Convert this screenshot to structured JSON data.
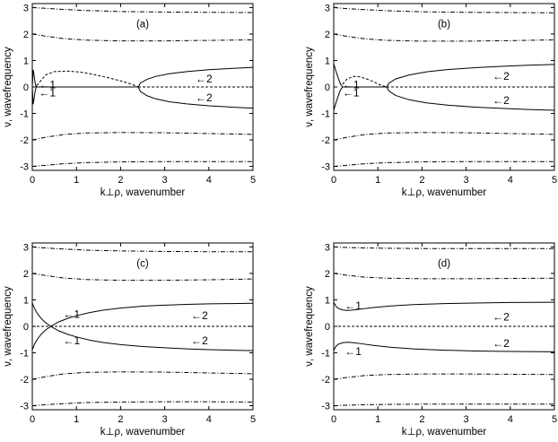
{
  "chart_data": [
    {
      "type": "line",
      "panel_label": "(a)",
      "xlabel": "k⊥ρ, wavenumber",
      "ylabel": "ν, wavefrequency",
      "xlim": [
        0,
        5
      ],
      "ylim": [
        -3.15,
        3.15
      ],
      "xticks": [
        0,
        1,
        2,
        3,
        4,
        5
      ],
      "yticks": [
        -3,
        -2,
        -1,
        0,
        1,
        2,
        3
      ],
      "grid": false,
      "annotations": [
        {
          "text": "←1",
          "x": 0.15,
          "y": 0.08
        },
        {
          "text": "←1",
          "x": 0.15,
          "y": -0.22
        },
        {
          "text": "←2",
          "x": 3.7,
          "y": 0.3
        },
        {
          "text": "←2",
          "x": 3.7,
          "y": -0.4
        }
      ],
      "series": [
        {
          "style": "solid",
          "x": [
            0,
            0.02,
            0.04,
            0.06,
            0.08,
            0.1
          ],
          "y": [
            0,
            0.65,
            0.45,
            0.2,
            0.05,
            0
          ]
        },
        {
          "style": "solid",
          "x": [
            0,
            0.02,
            0.04,
            0.06,
            0.08,
            0.1
          ],
          "y": [
            0,
            -0.65,
            -0.45,
            -0.2,
            -0.05,
            0
          ]
        },
        {
          "style": "solid",
          "x": [
            0.1,
            2.4
          ],
          "y": [
            0,
            0
          ]
        },
        {
          "style": "solid",
          "x": [
            2.4,
            2.45,
            2.6,
            2.8,
            3.1,
            3.5,
            4.0,
            4.5,
            5.0
          ],
          "y": [
            0,
            0.15,
            0.29,
            0.4,
            0.5,
            0.58,
            0.65,
            0.7,
            0.74
          ]
        },
        {
          "style": "solid",
          "x": [
            2.4,
            2.45,
            2.6,
            2.8,
            3.1,
            3.5,
            4.0,
            4.5,
            5.0
          ],
          "y": [
            0,
            -0.17,
            -0.33,
            -0.45,
            -0.56,
            -0.64,
            -0.71,
            -0.76,
            -0.8
          ]
        },
        {
          "style": "dashed",
          "x": [
            0.1,
            0.3,
            0.5,
            0.8,
            1.1,
            1.4,
            1.7,
            2.0,
            2.2,
            2.35,
            2.4
          ],
          "y": [
            0.05,
            0.45,
            0.58,
            0.6,
            0.56,
            0.47,
            0.36,
            0.23,
            0.13,
            0.04,
            0
          ]
        },
        {
          "style": "dashed",
          "x": [
            2.4,
            5.0
          ],
          "y": [
            0,
            0
          ]
        },
        {
          "style": "dashdot",
          "x": [
            0,
            0.3,
            0.7,
            1.2,
            2,
            3,
            4,
            5
          ],
          "y": [
            3.0,
            2.97,
            2.93,
            2.89,
            2.85,
            2.83,
            2.82,
            2.81
          ]
        },
        {
          "style": "dashdot",
          "x": [
            0,
            0.3,
            0.7,
            1.2,
            2,
            3,
            4,
            5
          ],
          "y": [
            2.0,
            1.92,
            1.83,
            1.77,
            1.74,
            1.74,
            1.76,
            1.78
          ]
        },
        {
          "style": "dashdot",
          "x": [
            0,
            0.3,
            0.7,
            1.2,
            2,
            3,
            4,
            5
          ],
          "y": [
            -2.0,
            -1.9,
            -1.8,
            -1.74,
            -1.72,
            -1.73,
            -1.76,
            -1.79
          ]
        },
        {
          "style": "dashdot",
          "x": [
            0,
            0.3,
            0.7,
            1.2,
            2,
            3,
            4,
            5
          ],
          "y": [
            -3.0,
            -2.96,
            -2.9,
            -2.86,
            -2.83,
            -2.82,
            -2.82,
            -2.82
          ]
        }
      ]
    },
    {
      "type": "line",
      "panel_label": "(b)",
      "xlabel": "k⊥ρ, wavenumber",
      "ylabel": "ν, wavefrequency",
      "xlim": [
        0,
        5
      ],
      "ylim": [
        -3.15,
        3.15
      ],
      "xticks": [
        0,
        1,
        2,
        3,
        4,
        5
      ],
      "yticks": [
        -3,
        -2,
        -1,
        0,
        1,
        2,
        3
      ],
      "grid": false,
      "annotations": [
        {
          "text": "←1",
          "x": 0.2,
          "y": 0.08
        },
        {
          "text": "←1",
          "x": 0.2,
          "y": -0.22
        },
        {
          "text": "←2",
          "x": 3.6,
          "y": 0.4
        },
        {
          "text": "←2",
          "x": 3.6,
          "y": -0.5
        }
      ],
      "series": [
        {
          "style": "solid",
          "x": [
            0,
            0.05,
            0.1,
            0.15,
            0.2
          ],
          "y": [
            0.88,
            0.6,
            0.35,
            0.12,
            0
          ]
        },
        {
          "style": "solid",
          "x": [
            0,
            0.05,
            0.1,
            0.15,
            0.2
          ],
          "y": [
            -0.88,
            -0.6,
            -0.35,
            -0.12,
            0
          ]
        },
        {
          "style": "solid",
          "x": [
            0.2,
            1.2
          ],
          "y": [
            0,
            0
          ]
        },
        {
          "style": "solid",
          "x": [
            1.2,
            1.25,
            1.4,
            1.7,
            2.1,
            2.6,
            3.2,
            3.8,
            4.4,
            5.0
          ],
          "y": [
            0,
            0.14,
            0.3,
            0.45,
            0.57,
            0.66,
            0.73,
            0.78,
            0.82,
            0.85
          ]
        },
        {
          "style": "solid",
          "x": [
            1.2,
            1.25,
            1.4,
            1.7,
            2.1,
            2.6,
            3.2,
            3.8,
            4.4,
            5.0
          ],
          "y": [
            0,
            -0.15,
            -0.32,
            -0.48,
            -0.6,
            -0.69,
            -0.76,
            -0.81,
            -0.85,
            -0.88
          ]
        },
        {
          "style": "dashed",
          "x": [
            0.2,
            0.3,
            0.45,
            0.6,
            0.75,
            0.9,
            1.05,
            1.2
          ],
          "y": [
            0.1,
            0.3,
            0.4,
            0.38,
            0.3,
            0.2,
            0.08,
            0
          ]
        },
        {
          "style": "dashed",
          "x": [
            1.2,
            5.0
          ],
          "y": [
            0,
            0
          ]
        },
        {
          "style": "dashdot",
          "x": [
            0,
            0.3,
            0.7,
            1.2,
            2,
            3,
            4,
            5
          ],
          "y": [
            3.0,
            2.96,
            2.92,
            2.88,
            2.84,
            2.82,
            2.81,
            2.8
          ]
        },
        {
          "style": "dashdot",
          "x": [
            0,
            0.3,
            0.7,
            1.2,
            2,
            3,
            4,
            5
          ],
          "y": [
            2.0,
            1.91,
            1.82,
            1.76,
            1.73,
            1.73,
            1.75,
            1.78
          ]
        },
        {
          "style": "dashdot",
          "x": [
            0,
            0.3,
            0.7,
            1.2,
            2,
            3,
            4,
            5
          ],
          "y": [
            -2.0,
            -1.9,
            -1.8,
            -1.74,
            -1.72,
            -1.73,
            -1.76,
            -1.79
          ]
        },
        {
          "style": "dashdot",
          "x": [
            0,
            0.3,
            0.7,
            1.2,
            2,
            3,
            4,
            5
          ],
          "y": [
            -3.0,
            -2.96,
            -2.9,
            -2.86,
            -2.83,
            -2.82,
            -2.82,
            -2.82
          ]
        }
      ]
    },
    {
      "type": "line",
      "panel_label": "(c)",
      "xlabel": "k⊥ρ, wavenumber",
      "ylabel": "ν, wavefrequency",
      "xlim": [
        0,
        5
      ],
      "ylim": [
        -3.15,
        3.15
      ],
      "xticks": [
        0,
        1,
        2,
        3,
        4,
        5
      ],
      "yticks": [
        -3,
        -2,
        -1,
        0,
        1,
        2,
        3
      ],
      "grid": false,
      "annotations": [
        {
          "text": "←1",
          "x": 0.7,
          "y": 0.45
        },
        {
          "text": "←1",
          "x": 0.7,
          "y": -0.55
        },
        {
          "text": "←2",
          "x": 3.6,
          "y": 0.4
        },
        {
          "text": "←2",
          "x": 3.6,
          "y": -0.55
        }
      ],
      "series": [
        {
          "style": "solid",
          "x": [
            0,
            0.05,
            0.1,
            0.2,
            0.3,
            0.45,
            0.6,
            0.8,
            1.0,
            1.3,
            1.6,
            2.0,
            2.5,
            3.0,
            3.5,
            4.0,
            4.5,
            5.0
          ],
          "y": [
            0.88,
            0.68,
            0.52,
            0.3,
            0.14,
            -0.03,
            -0.17,
            -0.3,
            -0.4,
            -0.52,
            -0.61,
            -0.69,
            -0.76,
            -0.81,
            -0.85,
            -0.88,
            -0.9,
            -0.92
          ]
        },
        {
          "style": "solid",
          "x": [
            0,
            0.05,
            0.1,
            0.2,
            0.3,
            0.45,
            0.6,
            0.8,
            1.0,
            1.3,
            1.6,
            2.0,
            2.5,
            3.0,
            3.5,
            4.0,
            4.5,
            5.0
          ],
          "y": [
            -0.88,
            -0.68,
            -0.52,
            -0.3,
            -0.14,
            0.03,
            0.17,
            0.3,
            0.4,
            0.52,
            0.61,
            0.69,
            0.76,
            0.8,
            0.83,
            0.85,
            0.86,
            0.87
          ]
        },
        {
          "style": "dashed",
          "x": [
            0,
            5.0
          ],
          "y": [
            0,
            0
          ]
        },
        {
          "style": "dashdot",
          "x": [
            0,
            0.3,
            0.7,
            1.2,
            2,
            3,
            4,
            5
          ],
          "y": [
            3.0,
            2.96,
            2.92,
            2.88,
            2.85,
            2.83,
            2.82,
            2.82
          ]
        },
        {
          "style": "dashdot",
          "x": [
            0,
            0.3,
            0.7,
            1.2,
            2,
            3,
            4,
            5
          ],
          "y": [
            2.0,
            1.92,
            1.83,
            1.77,
            1.74,
            1.74,
            1.76,
            1.79
          ]
        },
        {
          "style": "dashdot",
          "x": [
            0,
            0.3,
            0.7,
            1.2,
            2,
            3,
            4,
            5
          ],
          "y": [
            -2.0,
            -1.9,
            -1.8,
            -1.74,
            -1.72,
            -1.73,
            -1.76,
            -1.79
          ]
        },
        {
          "style": "dashdot",
          "x": [
            0,
            0.3,
            0.7,
            1.2,
            2,
            3,
            4,
            5
          ],
          "y": [
            -3.0,
            -2.96,
            -2.92,
            -2.88,
            -2.86,
            -2.85,
            -2.85,
            -2.86
          ]
        }
      ]
    },
    {
      "type": "line",
      "panel_label": "(d)",
      "xlabel": "k⊥ρ, wavenumber",
      "ylabel": "ν, wavefrequency",
      "xlim": [
        0,
        5
      ],
      "ylim": [
        -3.15,
        3.15
      ],
      "xticks": [
        0,
        1,
        2,
        3,
        4,
        5
      ],
      "yticks": [
        -3,
        -2,
        -1,
        0,
        1,
        2,
        3
      ],
      "grid": false,
      "annotations": [
        {
          "text": "←1",
          "x": 0.25,
          "y": 0.78
        },
        {
          "text": "←1",
          "x": 0.25,
          "y": -0.95
        },
        {
          "text": "←2",
          "x": 3.6,
          "y": 0.35
        },
        {
          "text": "←2",
          "x": 3.6,
          "y": -0.65
        }
      ],
      "series": [
        {
          "style": "solid",
          "x": [
            0,
            0.05,
            0.1,
            0.2,
            0.3,
            0.4,
            0.6,
            0.9,
            1.3,
            1.8,
            2.5,
            3.2,
            4.0,
            5.0
          ],
          "y": [
            0.9,
            0.76,
            0.68,
            0.62,
            0.6,
            0.61,
            0.65,
            0.71,
            0.77,
            0.82,
            0.86,
            0.88,
            0.9,
            0.91
          ]
        },
        {
          "style": "solid",
          "x": [
            0,
            0.05,
            0.1,
            0.2,
            0.3,
            0.4,
            0.6,
            0.9,
            1.3,
            1.8,
            2.5,
            3.2,
            4.0,
            5.0
          ],
          "y": [
            -0.9,
            -0.76,
            -0.68,
            -0.62,
            -0.6,
            -0.61,
            -0.65,
            -0.72,
            -0.79,
            -0.85,
            -0.9,
            -0.93,
            -0.95,
            -0.96
          ]
        },
        {
          "style": "dashed",
          "x": [
            0,
            5.0
          ],
          "y": [
            0,
            0
          ]
        },
        {
          "style": "dashdot",
          "x": [
            0,
            0.3,
            0.7,
            1.2,
            2,
            3,
            4,
            5
          ],
          "y": [
            3.0,
            2.98,
            2.96,
            2.95,
            2.94,
            2.94,
            2.94,
            2.94
          ]
        },
        {
          "style": "dashdot",
          "x": [
            0,
            0.3,
            0.7,
            1.2,
            2,
            3,
            4,
            5
          ],
          "y": [
            2.0,
            1.93,
            1.86,
            1.82,
            1.8,
            1.8,
            1.81,
            1.82
          ]
        },
        {
          "style": "dashdot",
          "x": [
            0,
            0.3,
            0.7,
            1.2,
            2,
            3,
            4,
            5
          ],
          "y": [
            -2.0,
            -1.93,
            -1.86,
            -1.82,
            -1.8,
            -1.8,
            -1.81,
            -1.82
          ]
        },
        {
          "style": "dashdot",
          "x": [
            0,
            0.3,
            0.7,
            1.2,
            2,
            3,
            4,
            5
          ],
          "y": [
            -3.0,
            -2.98,
            -2.96,
            -2.95,
            -2.94,
            -2.94,
            -2.94,
            -2.94
          ]
        }
      ]
    }
  ]
}
